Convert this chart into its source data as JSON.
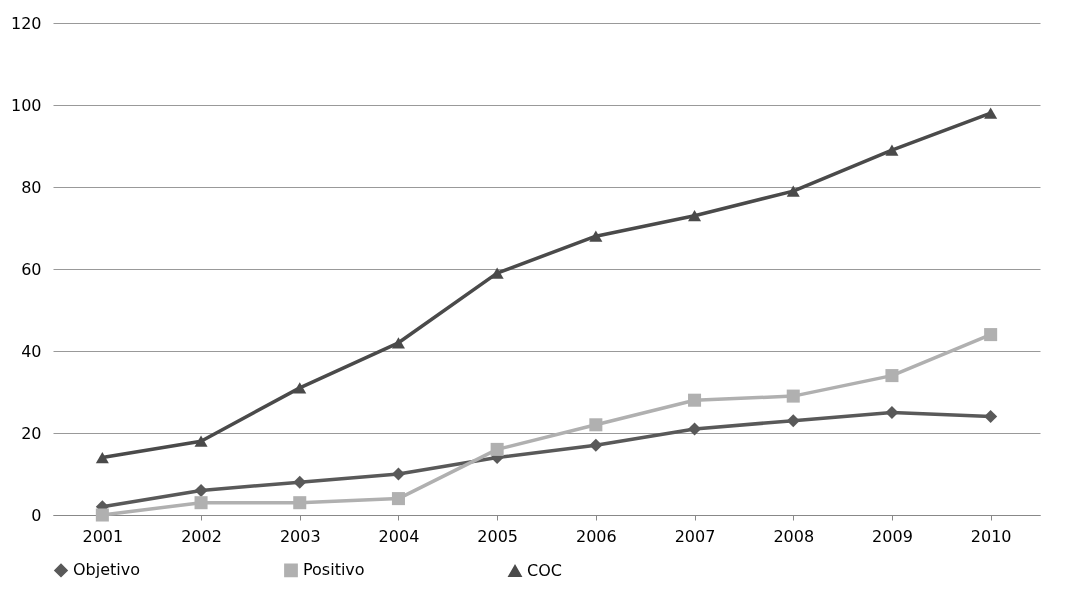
{
  "chart_data": {
    "type": "line",
    "categories": [
      "2001",
      "2002",
      "2003",
      "2004",
      "2005",
      "2006",
      "2007",
      "2008",
      "2009",
      "2010"
    ],
    "series": [
      {
        "name": "Objetivo",
        "color": "#595959",
        "marker": "diamond",
        "values": [
          2,
          6,
          8,
          10,
          14,
          17,
          21,
          23,
          25,
          24
        ]
      },
      {
        "name": "Positivo",
        "color": "#b0b0b0",
        "marker": "square",
        "values": [
          0,
          3,
          3,
          4,
          16,
          22,
          28,
          29,
          34,
          44
        ]
      },
      {
        "name": "COC",
        "color": "#4a4a4a",
        "marker": "triangle",
        "values": [
          14,
          18,
          31,
          42,
          59,
          68,
          73,
          79,
          89,
          98
        ]
      }
    ],
    "ylim": [
      0,
      120
    ],
    "yticks": [
      0,
      20,
      40,
      60,
      80,
      100,
      120
    ],
    "grid": "y",
    "legend": "bottom"
  }
}
